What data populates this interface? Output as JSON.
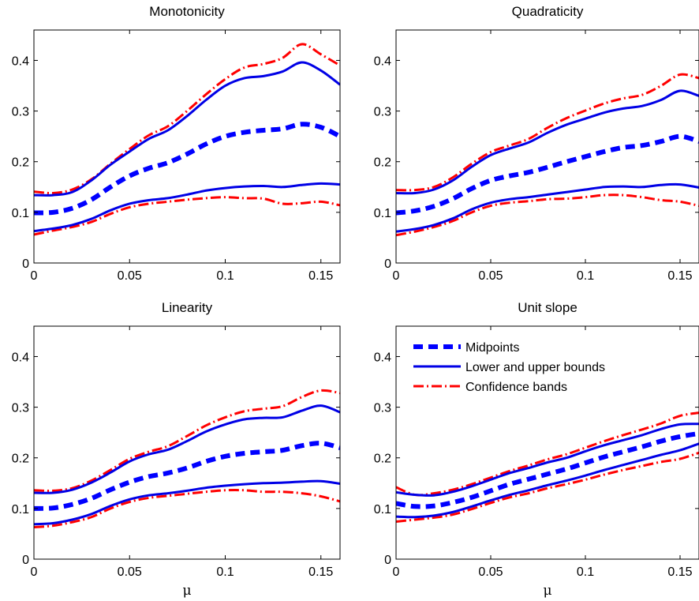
{
  "chart_data": [
    {
      "type": "line",
      "title": "Monotonicity",
      "xlabel": "",
      "xlim": [
        0,
        0.16
      ],
      "ylim": [
        0,
        0.46
      ],
      "xticks": [
        "0",
        "0.05",
        "0.1",
        "0.15"
      ],
      "yticks": [
        "0",
        "0.1",
        "0.2",
        "0.3",
        "0.4"
      ],
      "x": [
        0,
        0.01,
        0.02,
        0.03,
        0.04,
        0.05,
        0.06,
        0.07,
        0.08,
        0.09,
        0.1,
        0.11,
        0.12,
        0.13,
        0.14,
        0.15,
        0.16
      ],
      "series": [
        {
          "role": "midpoint",
          "values": [
            0.099,
            0.1,
            0.108,
            0.125,
            0.15,
            0.172,
            0.187,
            0.198,
            0.215,
            0.235,
            0.25,
            0.258,
            0.262,
            0.265,
            0.274,
            0.268,
            0.25
          ]
        },
        {
          "role": "upper-bound",
          "values": [
            0.134,
            0.134,
            0.14,
            0.163,
            0.194,
            0.22,
            0.245,
            0.262,
            0.29,
            0.322,
            0.35,
            0.365,
            0.369,
            0.378,
            0.396,
            0.38,
            0.352
          ]
        },
        {
          "role": "lower-bound",
          "values": [
            0.063,
            0.068,
            0.075,
            0.087,
            0.104,
            0.117,
            0.124,
            0.128,
            0.135,
            0.143,
            0.148,
            0.151,
            0.152,
            0.15,
            0.154,
            0.157,
            0.155
          ]
        },
        {
          "role": "upper-band",
          "values": [
            0.141,
            0.138,
            0.145,
            0.165,
            0.196,
            0.225,
            0.252,
            0.27,
            0.3,
            0.333,
            0.363,
            0.386,
            0.393,
            0.405,
            0.432,
            0.412,
            0.39
          ]
        },
        {
          "role": "lower-band",
          "values": [
            0.056,
            0.064,
            0.071,
            0.081,
            0.097,
            0.11,
            0.117,
            0.121,
            0.125,
            0.128,
            0.13,
            0.128,
            0.127,
            0.117,
            0.118,
            0.121,
            0.114
          ]
        }
      ]
    },
    {
      "type": "line",
      "title": "Quadraticity",
      "xlabel": "",
      "xlim": [
        0,
        0.16
      ],
      "ylim": [
        0,
        0.46
      ],
      "xticks": [
        "0",
        "0.05",
        "0.1",
        "0.15"
      ],
      "yticks": [
        "0",
        "0.1",
        "0.2",
        "0.3",
        "0.4"
      ],
      "x": [
        0,
        0.01,
        0.02,
        0.03,
        0.04,
        0.05,
        0.06,
        0.07,
        0.08,
        0.09,
        0.1,
        0.11,
        0.12,
        0.13,
        0.14,
        0.15,
        0.16
      ],
      "series": [
        {
          "role": "midpoint",
          "values": [
            0.099,
            0.103,
            0.112,
            0.127,
            0.147,
            0.163,
            0.172,
            0.179,
            0.189,
            0.2,
            0.21,
            0.22,
            0.228,
            0.232,
            0.24,
            0.25,
            0.24
          ]
        },
        {
          "role": "upper-bound",
          "values": [
            0.138,
            0.138,
            0.145,
            0.163,
            0.19,
            0.213,
            0.226,
            0.238,
            0.257,
            0.273,
            0.285,
            0.297,
            0.305,
            0.31,
            0.322,
            0.34,
            0.33
          ]
        },
        {
          "role": "lower-bound",
          "values": [
            0.062,
            0.067,
            0.075,
            0.088,
            0.106,
            0.119,
            0.126,
            0.13,
            0.135,
            0.14,
            0.145,
            0.15,
            0.151,
            0.15,
            0.154,
            0.155,
            0.149
          ]
        },
        {
          "role": "upper-band",
          "values": [
            0.144,
            0.144,
            0.15,
            0.169,
            0.196,
            0.219,
            0.232,
            0.245,
            0.267,
            0.286,
            0.301,
            0.315,
            0.325,
            0.332,
            0.35,
            0.372,
            0.365
          ]
        },
        {
          "role": "lower-band",
          "values": [
            0.055,
            0.062,
            0.071,
            0.083,
            0.1,
            0.113,
            0.119,
            0.122,
            0.126,
            0.127,
            0.13,
            0.134,
            0.134,
            0.13,
            0.124,
            0.121,
            0.113
          ]
        }
      ]
    },
    {
      "type": "line",
      "title": "Linearity",
      "xlabel": "μ",
      "xlim": [
        0,
        0.16
      ],
      "ylim": [
        0,
        0.46
      ],
      "xticks": [
        "0",
        "0.05",
        "0.1",
        "0.15"
      ],
      "yticks": [
        "0",
        "0.1",
        "0.2",
        "0.3",
        "0.4"
      ],
      "x": [
        0,
        0.01,
        0.02,
        0.03,
        0.04,
        0.05,
        0.06,
        0.07,
        0.08,
        0.09,
        0.1,
        0.11,
        0.12,
        0.13,
        0.14,
        0.15,
        0.16
      ],
      "series": [
        {
          "role": "midpoint",
          "values": [
            0.1,
            0.101,
            0.108,
            0.12,
            0.137,
            0.152,
            0.163,
            0.17,
            0.18,
            0.193,
            0.203,
            0.209,
            0.212,
            0.215,
            0.224,
            0.229,
            0.22
          ]
        },
        {
          "role": "upper-bound",
          "values": [
            0.131,
            0.131,
            0.137,
            0.151,
            0.171,
            0.193,
            0.207,
            0.216,
            0.233,
            0.252,
            0.266,
            0.276,
            0.279,
            0.28,
            0.293,
            0.303,
            0.29
          ]
        },
        {
          "role": "lower-bound",
          "values": [
            0.069,
            0.071,
            0.078,
            0.089,
            0.105,
            0.118,
            0.126,
            0.13,
            0.135,
            0.141,
            0.145,
            0.148,
            0.15,
            0.151,
            0.153,
            0.154,
            0.149
          ]
        },
        {
          "role": "upper-band",
          "values": [
            0.136,
            0.135,
            0.14,
            0.155,
            0.176,
            0.198,
            0.212,
            0.223,
            0.243,
            0.264,
            0.28,
            0.292,
            0.297,
            0.302,
            0.32,
            0.333,
            0.328
          ]
        },
        {
          "role": "lower-band",
          "values": [
            0.063,
            0.066,
            0.073,
            0.083,
            0.1,
            0.113,
            0.121,
            0.125,
            0.129,
            0.133,
            0.136,
            0.136,
            0.133,
            0.133,
            0.13,
            0.124,
            0.114
          ]
        }
      ]
    },
    {
      "type": "line",
      "title": "Unit slope",
      "xlabel": "μ",
      "xlim": [
        0,
        0.16
      ],
      "ylim": [
        0,
        0.46
      ],
      "xticks": [
        "0",
        "0.05",
        "0.1",
        "0.15"
      ],
      "yticks": [
        "0",
        "0.1",
        "0.2",
        "0.3",
        "0.4"
      ],
      "x": [
        0,
        0.01,
        0.02,
        0.03,
        0.04,
        0.05,
        0.06,
        0.07,
        0.08,
        0.09,
        0.1,
        0.11,
        0.12,
        0.13,
        0.14,
        0.15,
        0.16
      ],
      "series": [
        {
          "role": "midpoint",
          "values": [
            0.11,
            0.104,
            0.105,
            0.112,
            0.122,
            0.135,
            0.148,
            0.158,
            0.168,
            0.178,
            0.19,
            0.202,
            0.212,
            0.222,
            0.233,
            0.242,
            0.248
          ]
        },
        {
          "role": "upper-bound",
          "values": [
            0.132,
            0.127,
            0.126,
            0.133,
            0.144,
            0.157,
            0.17,
            0.18,
            0.191,
            0.2,
            0.213,
            0.225,
            0.235,
            0.245,
            0.257,
            0.266,
            0.267
          ]
        },
        {
          "role": "lower-bound",
          "values": [
            0.084,
            0.083,
            0.086,
            0.093,
            0.104,
            0.116,
            0.127,
            0.136,
            0.146,
            0.155,
            0.165,
            0.176,
            0.186,
            0.196,
            0.206,
            0.215,
            0.228
          ]
        },
        {
          "role": "upper-band",
          "values": [
            0.142,
            0.127,
            0.13,
            0.137,
            0.148,
            0.161,
            0.174,
            0.185,
            0.197,
            0.207,
            0.22,
            0.233,
            0.245,
            0.256,
            0.268,
            0.283,
            0.289
          ]
        },
        {
          "role": "lower-band",
          "values": [
            0.074,
            0.078,
            0.082,
            0.088,
            0.099,
            0.111,
            0.122,
            0.13,
            0.14,
            0.148,
            0.157,
            0.167,
            0.176,
            0.184,
            0.192,
            0.198,
            0.21
          ]
        }
      ]
    }
  ],
  "legend": {
    "placement": "top-left of Unit slope panel",
    "entries": [
      {
        "label": "Midpoints",
        "style": "midpoint"
      },
      {
        "label": "Lower and upper bounds",
        "style": "bound"
      },
      {
        "label": "Confidence bands",
        "style": "band"
      }
    ]
  },
  "colors": {
    "midpoint": "#0000ff",
    "bound": "#0000e6",
    "band": "#ff0000"
  }
}
